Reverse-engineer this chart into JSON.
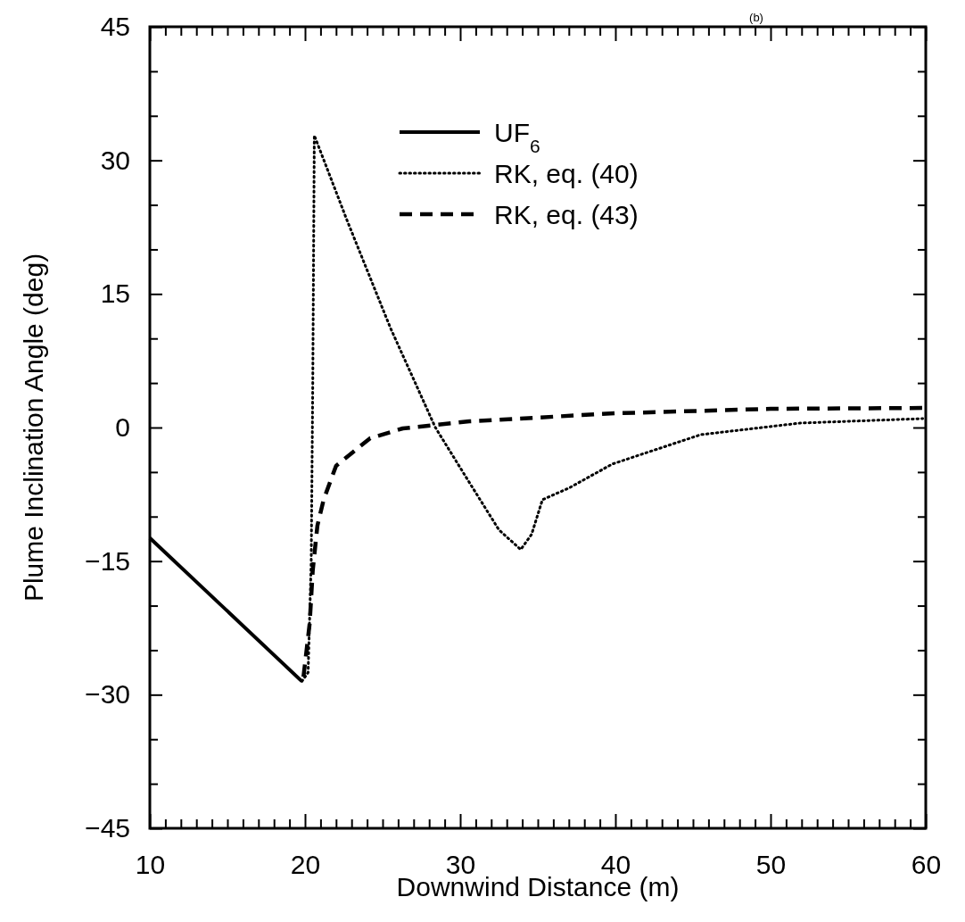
{
  "chart_data": {
    "type": "line",
    "title": "(b)",
    "xlabel": "Downwind Distance (m)",
    "ylabel": "Plume Inclination Angle (deg)",
    "xlim": [
      10,
      60
    ],
    "ylim": [
      -45,
      45
    ],
    "xticks": [
      10,
      {
        "value": 11,
        "label": null
      },
      {
        "value": 12,
        "label": null
      },
      {
        "value": 13,
        "label": null
      },
      {
        "value": 14,
        "label": null
      },
      {
        "value": 15,
        "label": null
      },
      {
        "value": 16,
        "label": null
      },
      {
        "value": 17,
        "label": null
      },
      {
        "value": 18,
        "label": null
      },
      {
        "value": 19,
        "label": null
      },
      20,
      {
        "value": 21,
        "label": null
      },
      {
        "value": 22,
        "label": null
      },
      {
        "value": 23,
        "label": null
      },
      {
        "value": 24,
        "label": null
      },
      {
        "value": 25,
        "label": null
      },
      {
        "value": 26,
        "label": null
      },
      {
        "value": 27,
        "label": null
      },
      {
        "value": 28,
        "label": null
      },
      {
        "value": 29,
        "label": null
      },
      30,
      {
        "value": 31,
        "label": null
      },
      {
        "value": 32,
        "label": null
      },
      {
        "value": 33,
        "label": null
      },
      {
        "value": 34,
        "label": null
      },
      {
        "value": 35,
        "label": null
      },
      {
        "value": 36,
        "label": null
      },
      {
        "value": 37,
        "label": null
      },
      {
        "value": 38,
        "label": null
      },
      {
        "value": 39,
        "label": null
      },
      40,
      {
        "value": 41,
        "label": null
      },
      {
        "value": 42,
        "label": null
      },
      {
        "value": 43,
        "label": null
      },
      {
        "value": 44,
        "label": null
      },
      {
        "value": 45,
        "label": null
      },
      {
        "value": 46,
        "label": null
      },
      {
        "value": 47,
        "label": null
      },
      {
        "value": 48,
        "label": null
      },
      {
        "value": 49,
        "label": null
      },
      50,
      {
        "value": 51,
        "label": null
      },
      {
        "value": 52,
        "label": null
      },
      {
        "value": 53,
        "label": null
      },
      {
        "value": 54,
        "label": null
      },
      {
        "value": 55,
        "label": null
      },
      {
        "value": 56,
        "label": null
      },
      {
        "value": 57,
        "label": null
      },
      {
        "value": 58,
        "label": null
      },
      {
        "value": 59,
        "label": null
      },
      60
    ],
    "yticks": [
      -45,
      {
        "value": -40,
        "label": null
      },
      {
        "value": -35,
        "label": null
      },
      -30,
      {
        "value": -25,
        "label": null
      },
      {
        "value": -20,
        "label": null
      },
      -15,
      {
        "value": -10,
        "label": null
      },
      {
        "value": -5,
        "label": null
      },
      0,
      {
        "value": 5,
        "label": null
      },
      {
        "value": 10,
        "label": null
      },
      15,
      {
        "value": 20,
        "label": null
      },
      {
        "value": 25,
        "label": null
      },
      30,
      {
        "value": 35,
        "label": null
      },
      {
        "value": 40,
        "label": null
      },
      45
    ],
    "legend": "top right",
    "grid": false,
    "marker": "none",
    "series": [
      {
        "name": "UF$_{6}$",
        "color": "#000000",
        "line_style": "solid",
        "x": [
          10,
          19.8
        ],
        "values": [
          -12.4,
          -28.5
        ]
      },
      {
        "name": "RK, eq. (40)",
        "color": "#000000",
        "line_style": "dotted",
        "x": [
          19.8,
          20.2,
          20.4,
          20.5,
          20.6,
          22.7,
          25.5,
          28.4,
          30.6,
          32.5,
          33.9,
          34.6,
          35.3,
          37.0,
          39.8,
          45.5,
          51.9,
          59.8
        ],
        "values": [
          -28.5,
          -27.5,
          -15,
          5,
          32.8,
          23.3,
          11.2,
          0,
          -6.2,
          -11.5,
          -13.7,
          -12,
          -8.1,
          -6.8,
          -4.1,
          -0.8,
          0.5,
          1.0
        ]
      },
      {
        "name": "RK, eq. (43)",
        "color": "#000000",
        "line_style": "dashed",
        "x": [
          19.9,
          20.3,
          20.5,
          20.8,
          21.2,
          22.0,
          24.2,
          26.3,
          30.6,
          40,
          50,
          60
        ],
        "values": [
          -28,
          -22,
          -16,
          -11,
          -8.1,
          -4.3,
          -1.2,
          -0.1,
          0.7,
          1.6,
          2.1,
          2.2
        ]
      }
    ]
  }
}
